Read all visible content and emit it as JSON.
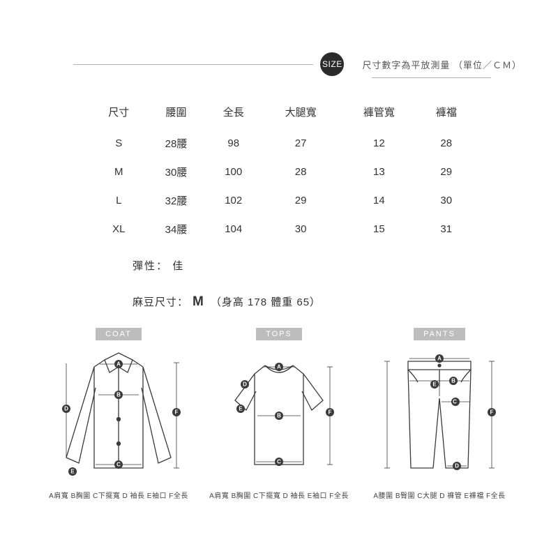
{
  "header": {
    "badge": "SIZE",
    "caption": "尺寸數字為平放測量 （單位／ＣＭ）"
  },
  "table": {
    "columns": [
      "尺寸",
      "腰圍",
      "全長",
      "大腿寬",
      "褲管寬",
      "褲襠"
    ],
    "rows": [
      [
        "S",
        "28腰",
        "98",
        "27",
        "12",
        "28"
      ],
      [
        "M",
        "30腰",
        "100",
        "28",
        "13",
        "29"
      ],
      [
        "L",
        "32腰",
        "102",
        "29",
        "14",
        "30"
      ],
      [
        "XL",
        "34腰",
        "104",
        "30",
        "15",
        "31"
      ]
    ]
  },
  "elastic": {
    "label": "彈性：",
    "value": "佳"
  },
  "model": {
    "label": "麻豆尺寸：",
    "size": "M",
    "detail": "（身高 178 體重 65）"
  },
  "diagrams": {
    "coat": {
      "label": "COAT",
      "caption": "A肩寬 B胸圍 C下擺寬 D 袖長 E袖口 F全長"
    },
    "tops": {
      "label": "TOPS",
      "caption": "A肩寬 B胸圍 C下擺寬 D 袖長 E袖口 F全長"
    },
    "pants": {
      "label": "PANTS",
      "caption": "A腰圍 B臀圍 C大腿 D 褲管 E褲襠 F全長"
    }
  },
  "style": {
    "badge_bg": "#2b2b2b",
    "badge_fg": "#ffffff",
    "line_color": "#b0b0b0",
    "text_color": "#333333",
    "caption_color": "#555555",
    "diagram_label_bg": "#bdbdbd",
    "diagram_label_fg": "#ffffff",
    "marker_bg": "#3a3a3a",
    "background": "#ffffff",
    "table_fontsize": 15,
    "header_fontsize": 13,
    "caption_fontsize": 10
  }
}
